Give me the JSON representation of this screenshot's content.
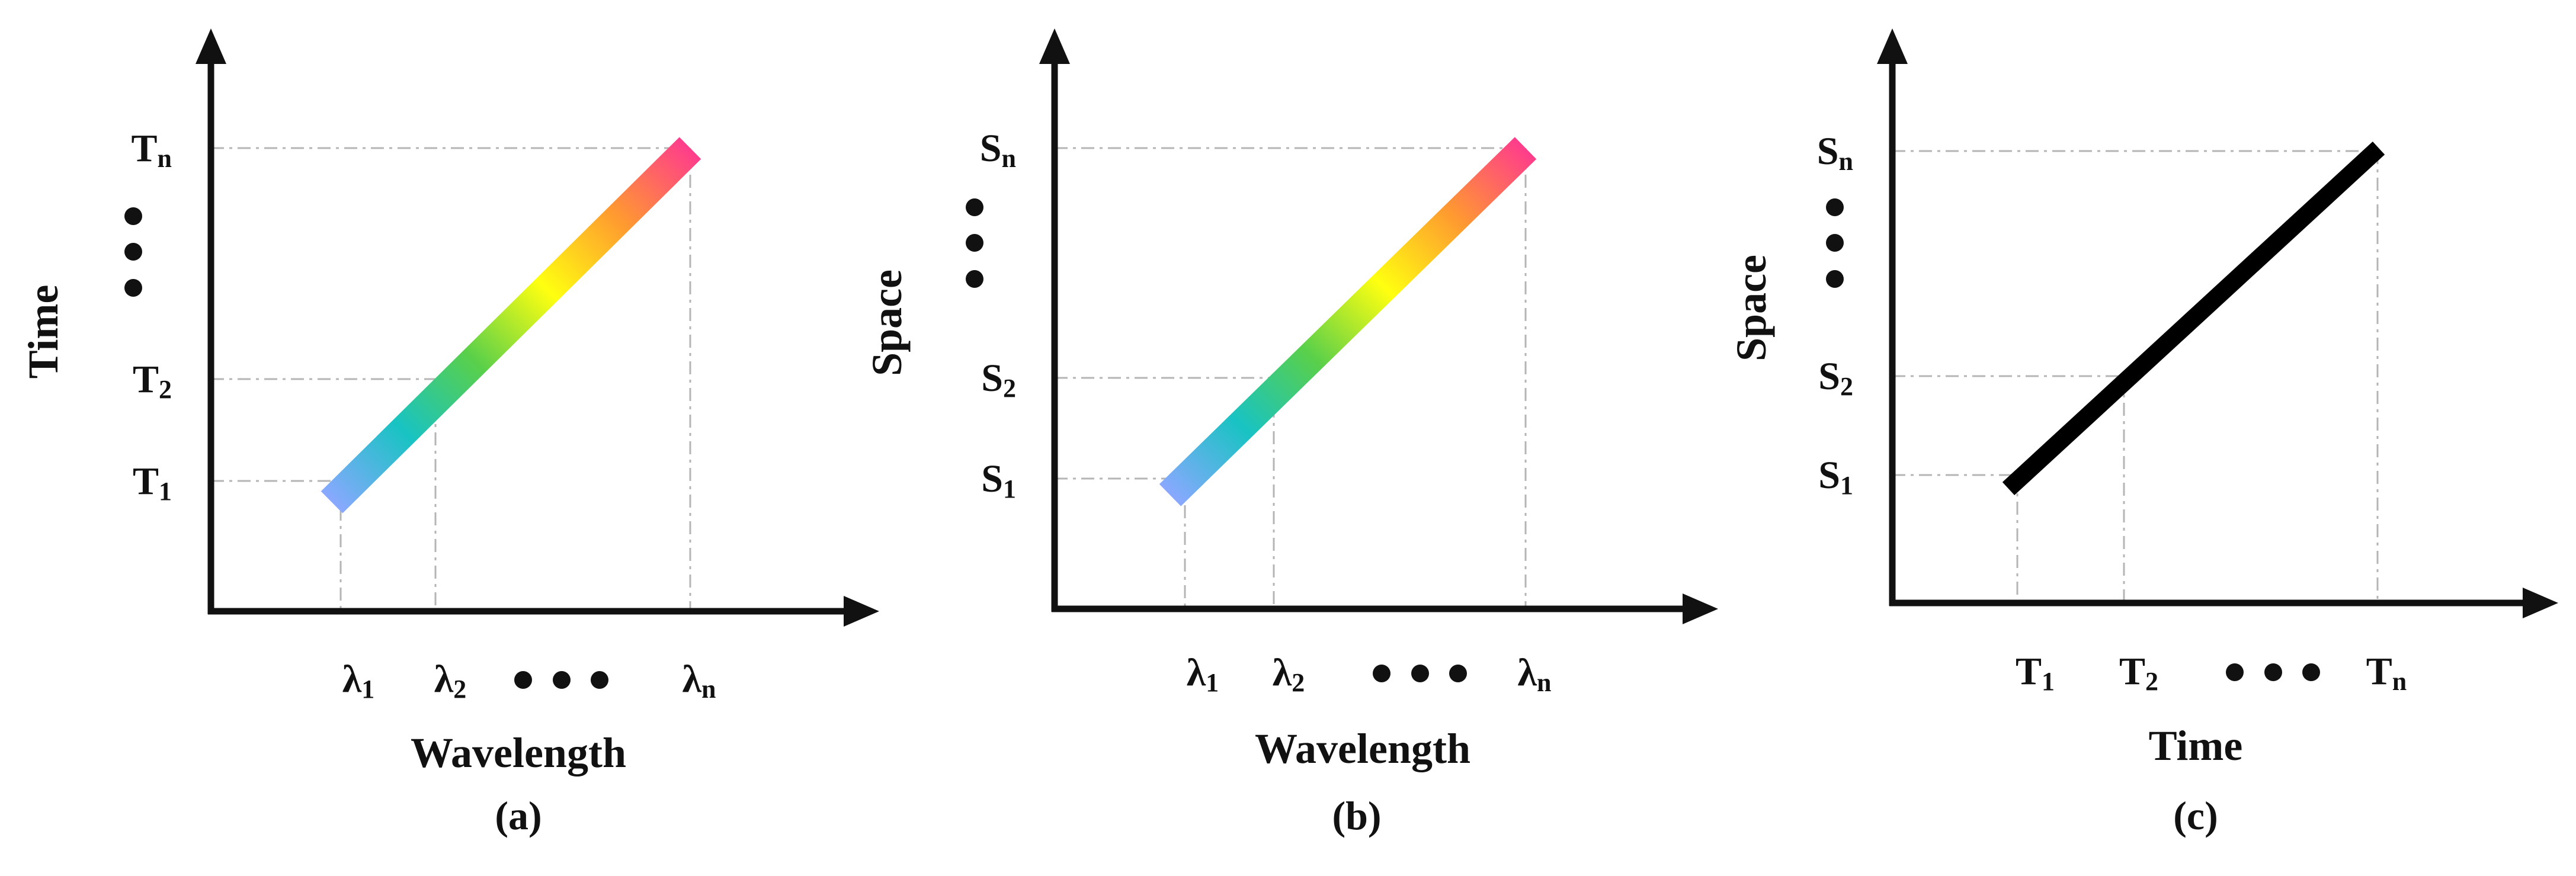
{
  "panels": [
    {
      "caption": "(a)",
      "xlabel": "Wavelength",
      "ylabel": "Time",
      "x_ticks": [
        {
          "base": "λ",
          "sub": "1"
        },
        {
          "base": "λ",
          "sub": "2"
        },
        {
          "ellipsis": true
        },
        {
          "base": "λ",
          "sub": "n"
        }
      ],
      "y_ticks": [
        {
          "base": "T",
          "sub": "1"
        },
        {
          "base": "T",
          "sub": "2"
        },
        {
          "ellipsis": true
        },
        {
          "base": "T",
          "sub": "n"
        }
      ],
      "line_style": "spectrum"
    },
    {
      "caption": "(b)",
      "xlabel": "Wavelength",
      "ylabel": "Space",
      "x_ticks": [
        {
          "base": "λ",
          "sub": "1"
        },
        {
          "base": "λ",
          "sub": "2"
        },
        {
          "ellipsis": true
        },
        {
          "base": "λ",
          "sub": "n"
        }
      ],
      "y_ticks": [
        {
          "base": "S",
          "sub": "1"
        },
        {
          "base": "S",
          "sub": "2"
        },
        {
          "ellipsis": true
        },
        {
          "base": "S",
          "sub": "n"
        }
      ],
      "line_style": "spectrum"
    },
    {
      "caption": "(c)",
      "xlabel": "Time",
      "ylabel": "Space",
      "x_ticks": [
        {
          "base": "T",
          "sub": "1"
        },
        {
          "base": "T",
          "sub": "2"
        },
        {
          "ellipsis": true
        },
        {
          "base": "T",
          "sub": "n"
        }
      ],
      "y_ticks": [
        {
          "base": "S",
          "sub": "1"
        },
        {
          "base": "S",
          "sub": "2"
        },
        {
          "ellipsis": true
        },
        {
          "base": "S",
          "sub": "n"
        }
      ],
      "line_style": "solid"
    }
  ],
  "colors": {
    "axis": "#111111",
    "guide": "#b5b5b5",
    "solid_line": "#000000",
    "spectrum": [
      "#8aa8ff",
      "#18c3c3",
      "#5ad04a",
      "#ffff10",
      "#ff9a30",
      "#ff3c8c"
    ]
  }
}
